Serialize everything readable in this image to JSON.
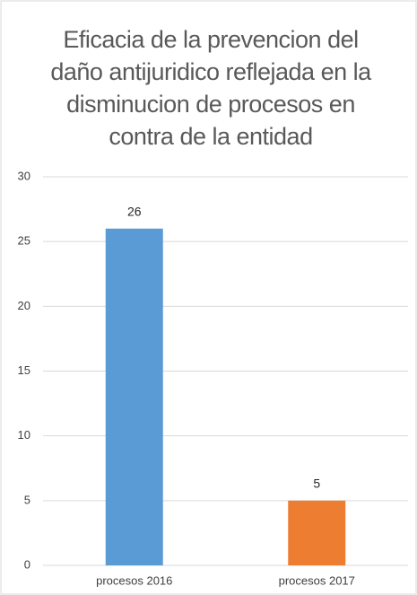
{
  "chart_data": {
    "type": "bar",
    "title": "Eficacia de la  prevencion del daño antijuridico reflejada en la disminucion de procesos en contra de la entidad",
    "categories": [
      "procesos 2016",
      "procesos 2017"
    ],
    "values": [
      26,
      5
    ],
    "colors": [
      "#5b9bd5",
      "#ed7d31"
    ],
    "ylim": [
      0,
      30
    ],
    "yticks": [
      0,
      5,
      10,
      15,
      20,
      25,
      30
    ],
    "grid": true
  }
}
